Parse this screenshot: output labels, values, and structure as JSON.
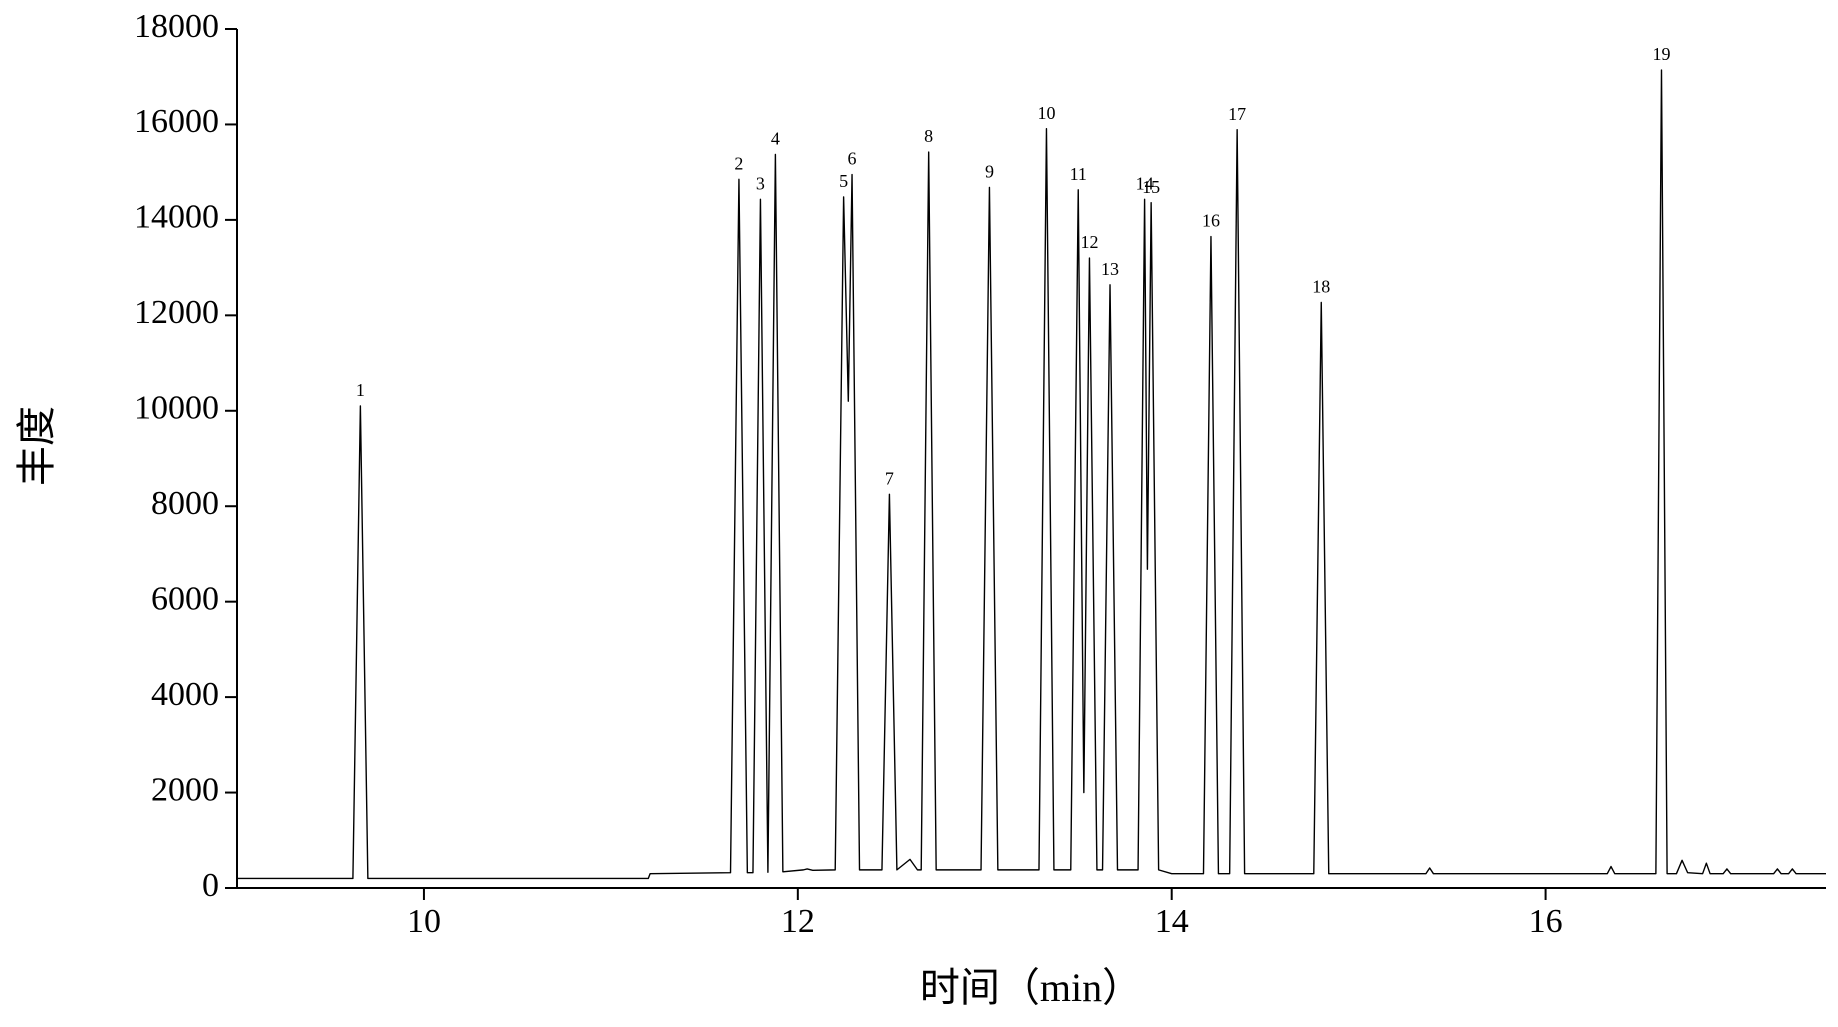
{
  "chart_data": {
    "type": "line",
    "xlabel": "时间（min）",
    "ylabel": "丰度",
    "xlim": [
      9,
      17.5
    ],
    "xticks": [
      10,
      12,
      14,
      16
    ],
    "ylim": [
      0,
      18000
    ],
    "yticks": [
      0,
      2000,
      4000,
      6000,
      8000,
      10000,
      12000,
      14000,
      16000,
      18000
    ],
    "grid": false,
    "series": [
      {
        "color": "#000000",
        "x": [
          9.0,
          9.62,
          9.66,
          9.7,
          11.2,
          11.21,
          11.64,
          11.685,
          11.73,
          11.76,
          11.8,
          11.84,
          11.88,
          11.92,
          12.03,
          12.05,
          12.08,
          12.2,
          12.245,
          12.27,
          12.29,
          12.33,
          12.45,
          12.49,
          12.53,
          12.6,
          12.64,
          12.66,
          12.7,
          12.74,
          12.98,
          13.025,
          13.07,
          13.29,
          13.33,
          13.37,
          13.46,
          13.5,
          13.53,
          13.56,
          13.6,
          13.63,
          13.67,
          13.71,
          13.82,
          13.855,
          13.87,
          13.89,
          13.93,
          14.0,
          14.17,
          14.21,
          14.25,
          14.31,
          14.35,
          14.39,
          14.76,
          14.8,
          14.84,
          15.36,
          15.38,
          15.4,
          16.33,
          16.35,
          16.37,
          16.59,
          16.62,
          16.65,
          16.7,
          16.73,
          16.76,
          16.84,
          16.86,
          16.88,
          16.95,
          16.97,
          16.99,
          17.22,
          17.24,
          17.26,
          17.3,
          17.32,
          17.34,
          17.5
        ],
        "values": [
          200,
          200,
          10100,
          200,
          200,
          300,
          320,
          14850,
          320,
          320,
          14430,
          330,
          15370,
          340,
          380,
          400,
          370,
          380,
          14480,
          10200,
          14950,
          380,
          380,
          8250,
          380,
          600,
          380,
          380,
          15420,
          380,
          380,
          14680,
          380,
          380,
          15910,
          380,
          380,
          14630,
          2000,
          13200,
          380,
          380,
          12640,
          380,
          380,
          14430,
          6680,
          14360,
          380,
          300,
          300,
          13650,
          300,
          300,
          15890,
          300,
          300,
          12270,
          300,
          300,
          420,
          300,
          300,
          450,
          300,
          300,
          17140,
          300,
          300,
          580,
          320,
          300,
          520,
          300,
          300,
          400,
          300,
          300,
          400,
          300,
          300,
          400,
          300,
          300
        ]
      }
    ],
    "annotations": [
      {
        "text": "1",
        "x": 9.66,
        "y": 10100
      },
      {
        "text": "2",
        "x": 11.685,
        "y": 14850
      },
      {
        "text": "3",
        "x": 11.8,
        "y": 14430
      },
      {
        "text": "4",
        "x": 11.88,
        "y": 15370
      },
      {
        "text": "5",
        "x": 12.245,
        "y": 14480
      },
      {
        "text": "6",
        "x": 12.29,
        "y": 14950
      },
      {
        "text": "7",
        "x": 12.49,
        "y": 8250
      },
      {
        "text": "8",
        "x": 12.7,
        "y": 15420
      },
      {
        "text": "9",
        "x": 13.025,
        "y": 14680
      },
      {
        "text": "10",
        "x": 13.33,
        "y": 15910
      },
      {
        "text": "11",
        "x": 13.5,
        "y": 14630
      },
      {
        "text": "12",
        "x": 13.56,
        "y": 13200
      },
      {
        "text": "13",
        "x": 13.67,
        "y": 12640
      },
      {
        "text": "14",
        "x": 13.855,
        "y": 14430
      },
      {
        "text": "15",
        "x": 13.89,
        "y": 14360
      },
      {
        "text": "16",
        "x": 14.21,
        "y": 13650
      },
      {
        "text": "17",
        "x": 14.35,
        "y": 15890
      },
      {
        "text": "18",
        "x": 14.8,
        "y": 12270
      },
      {
        "text": "19",
        "x": 16.62,
        "y": 17140
      }
    ]
  }
}
